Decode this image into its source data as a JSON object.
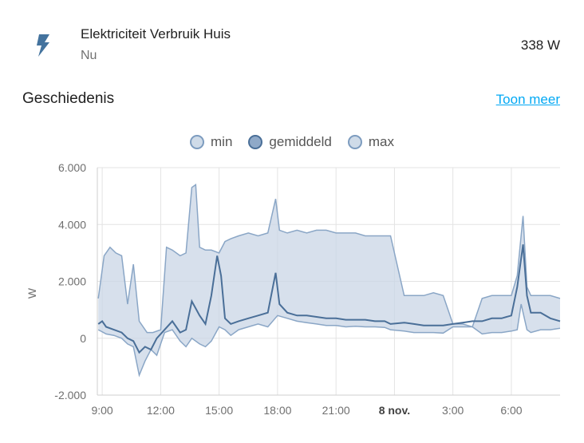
{
  "entity": {
    "name": "Elektriciteit Verbruik Huis",
    "secondary": "Nu",
    "state": "338 W",
    "icon": "flash-icon"
  },
  "history": {
    "title": "Geschiedenis",
    "show_more": "Toon meer"
  },
  "colors": {
    "accent_link": "#03a9f4",
    "series_line": "#4a6f98",
    "band_fill": "#c9d6e6",
    "icon": "#44739e"
  },
  "chart_data": {
    "type": "line",
    "ylabel": "W",
    "ylim": [
      -2000,
      6000
    ],
    "y_ticks": [
      "6.000",
      "4.000",
      "2.000",
      "0",
      "-2.000"
    ],
    "y_tick_values": [
      6000,
      4000,
      2000,
      0,
      -2000
    ],
    "x_ticks": [
      "9:00",
      "12:00",
      "15:00",
      "18:00",
      "21:00",
      "8 nov.",
      "3:00",
      "6:00"
    ],
    "x_tick_hours": [
      9,
      12,
      15,
      18,
      21,
      24,
      27,
      30
    ],
    "x_tick_bold": [
      false,
      false,
      false,
      false,
      false,
      true,
      false,
      false
    ],
    "xlim_hours": [
      8.75,
      32.5
    ],
    "grid": true,
    "legend_position": "top",
    "series": [
      {
        "name": "min",
        "x": [
          8.8,
          9.2,
          9.6,
          10.0,
          10.3,
          10.6,
          10.9,
          11.2,
          11.5,
          11.8,
          12.2,
          12.6,
          13.0,
          13.3,
          13.6,
          14.0,
          14.3,
          14.6,
          15.0,
          15.3,
          15.6,
          16.0,
          16.5,
          17.0,
          17.5,
          18.0,
          18.5,
          19.0,
          19.5,
          20.0,
          20.5,
          21.0,
          21.5,
          22.0,
          22.5,
          23.0,
          23.5,
          23.8,
          24.5,
          25.0,
          25.5,
          26.0,
          26.5,
          27.0,
          27.5,
          28.0,
          28.5,
          29.0,
          29.5,
          30.0,
          30.3,
          30.5,
          30.8,
          31.0,
          31.5,
          32.0,
          32.5
        ],
        "values": [
          300,
          150,
          100,
          0,
          -200,
          -300,
          -1300,
          -800,
          -400,
          -600,
          200,
          300,
          -100,
          -300,
          0,
          -200,
          -300,
          -100,
          400,
          300,
          100,
          300,
          400,
          500,
          400,
          800,
          700,
          600,
          550,
          500,
          450,
          450,
          400,
          420,
          400,
          400,
          380,
          300,
          250,
          200,
          200,
          200,
          180,
          400,
          400,
          400,
          150,
          200,
          200,
          250,
          300,
          1200,
          300,
          200,
          300,
          300,
          350
        ]
      },
      {
        "name": "gemiddeld",
        "x": [
          8.8,
          9.0,
          9.2,
          9.6,
          10.0,
          10.3,
          10.6,
          10.9,
          11.2,
          11.5,
          11.8,
          12.2,
          12.6,
          13.0,
          13.3,
          13.6,
          14.0,
          14.3,
          14.6,
          14.9,
          15.1,
          15.3,
          15.6,
          16.0,
          16.5,
          17.0,
          17.5,
          17.9,
          18.1,
          18.5,
          19.0,
          19.5,
          20.0,
          20.5,
          21.0,
          21.5,
          22.0,
          22.5,
          23.0,
          23.5,
          23.8,
          24.5,
          25.0,
          25.5,
          26.0,
          26.5,
          27.0,
          27.5,
          28.0,
          28.5,
          29.0,
          29.5,
          30.0,
          30.3,
          30.6,
          30.8,
          31.0,
          31.5,
          32.0,
          32.5
        ],
        "values": [
          500,
          600,
          400,
          300,
          200,
          0,
          -100,
          -500,
          -300,
          -400,
          0,
          300,
          600,
          200,
          300,
          1300,
          800,
          500,
          1500,
          2900,
          2200,
          700,
          500,
          600,
          700,
          800,
          900,
          2300,
          1200,
          900,
          800,
          800,
          750,
          700,
          700,
          650,
          650,
          650,
          600,
          600,
          500,
          550,
          500,
          450,
          450,
          450,
          500,
          550,
          600,
          600,
          700,
          700,
          800,
          1800,
          3300,
          1500,
          900,
          900,
          700,
          600
        ]
      },
      {
        "name": "max",
        "x": [
          8.8,
          9.1,
          9.4,
          9.7,
          10.0,
          10.3,
          10.6,
          10.9,
          11.3,
          11.6,
          12.0,
          12.3,
          12.6,
          13.0,
          13.3,
          13.6,
          13.8,
          14.0,
          14.3,
          14.6,
          15.0,
          15.3,
          15.6,
          16.0,
          16.5,
          17.0,
          17.5,
          17.9,
          18.1,
          18.5,
          19.0,
          19.5,
          20.0,
          20.5,
          21.0,
          21.5,
          22.0,
          22.5,
          23.0,
          23.5,
          23.8,
          24.5,
          25.0,
          25.5,
          26.0,
          26.5,
          27.0,
          27.5,
          28.0,
          28.5,
          29.0,
          29.5,
          30.0,
          30.3,
          30.6,
          30.8,
          31.0,
          31.5,
          32.0,
          32.5
        ],
        "values": [
          1400,
          2900,
          3200,
          3000,
          2900,
          1200,
          2600,
          600,
          200,
          200,
          300,
          3200,
          3100,
          2900,
          3000,
          5300,
          5400,
          3200,
          3100,
          3100,
          3000,
          3400,
          3500,
          3600,
          3700,
          3600,
          3700,
          4900,
          3800,
          3700,
          3800,
          3700,
          3800,
          3800,
          3700,
          3700,
          3700,
          3600,
          3600,
          3600,
          3600,
          1500,
          1500,
          1500,
          1600,
          1500,
          500,
          500,
          400,
          1400,
          1500,
          1500,
          1500,
          2200,
          4300,
          1800,
          1500,
          1500,
          1500,
          1400
        ]
      }
    ]
  }
}
